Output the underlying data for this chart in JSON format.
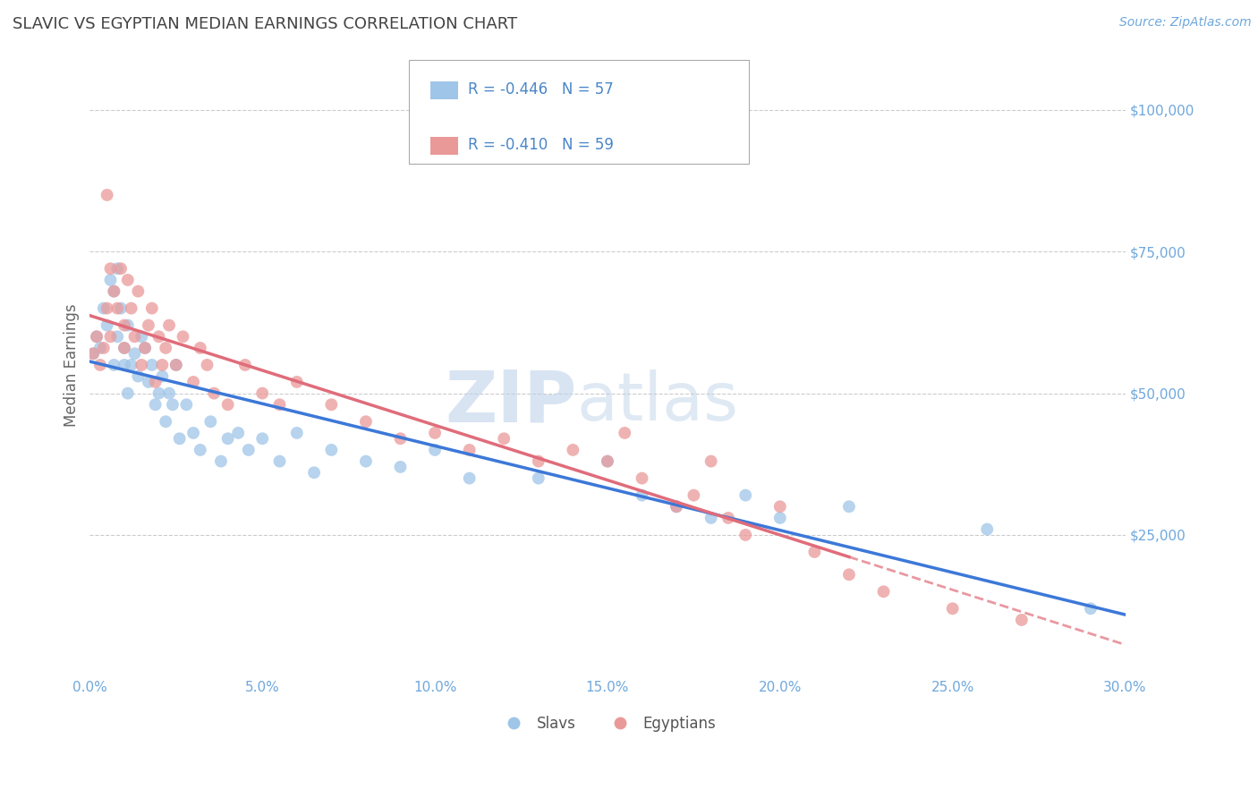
{
  "title": "SLAVIC VS EGYPTIAN MEDIAN EARNINGS CORRELATION CHART",
  "source_text": "Source: ZipAtlas.com",
  "ylabel": "Median Earnings",
  "xlim": [
    0.0,
    0.3
  ],
  "ylim": [
    0,
    110000
  ],
  "xticks": [
    0.0,
    0.05,
    0.1,
    0.15,
    0.2,
    0.25,
    0.3
  ],
  "xticklabels": [
    "0.0%",
    "5.0%",
    "10.0%",
    "15.0%",
    "20.0%",
    "25.0%",
    "30.0%"
  ],
  "yticks_right": [
    25000,
    50000,
    75000,
    100000
  ],
  "yticklabels_right": [
    "$25,000",
    "$50,000",
    "$75,000",
    "$100,000"
  ],
  "blue_color": "#9fc5e8",
  "pink_color": "#ea9999",
  "line_blue_color": "#3c78d8",
  "line_pink_color": "#e06c7a",
  "legend_text_color": "#4a86c8",
  "legend_r_blue": "R = -0.446",
  "legend_n_blue": "N = 57",
  "legend_r_pink": "R = -0.410",
  "legend_n_pink": "N = 59",
  "legend_label_blue": "Slavs",
  "legend_label_pink": "Egyptians",
  "title_color": "#434343",
  "axis_color": "#6fa8dc",
  "grid_color": "#cccccc",
  "slavs_x": [
    0.001,
    0.002,
    0.003,
    0.004,
    0.005,
    0.006,
    0.007,
    0.007,
    0.008,
    0.008,
    0.009,
    0.01,
    0.01,
    0.011,
    0.011,
    0.012,
    0.013,
    0.014,
    0.015,
    0.016,
    0.017,
    0.018,
    0.019,
    0.02,
    0.021,
    0.022,
    0.023,
    0.024,
    0.025,
    0.026,
    0.028,
    0.03,
    0.032,
    0.035,
    0.038,
    0.04,
    0.043,
    0.046,
    0.05,
    0.055,
    0.06,
    0.065,
    0.07,
    0.08,
    0.09,
    0.1,
    0.11,
    0.13,
    0.15,
    0.16,
    0.17,
    0.18,
    0.19,
    0.2,
    0.22,
    0.26,
    0.29
  ],
  "slavs_y": [
    57000,
    60000,
    58000,
    65000,
    62000,
    70000,
    68000,
    55000,
    72000,
    60000,
    65000,
    55000,
    58000,
    62000,
    50000,
    55000,
    57000,
    53000,
    60000,
    58000,
    52000,
    55000,
    48000,
    50000,
    53000,
    45000,
    50000,
    48000,
    55000,
    42000,
    48000,
    43000,
    40000,
    45000,
    38000,
    42000,
    43000,
    40000,
    42000,
    38000,
    43000,
    36000,
    40000,
    38000,
    37000,
    40000,
    35000,
    35000,
    38000,
    32000,
    30000,
    28000,
    32000,
    28000,
    30000,
    26000,
    12000
  ],
  "egyptians_x": [
    0.001,
    0.002,
    0.003,
    0.004,
    0.005,
    0.005,
    0.006,
    0.006,
    0.007,
    0.008,
    0.009,
    0.01,
    0.01,
    0.011,
    0.012,
    0.013,
    0.014,
    0.015,
    0.016,
    0.017,
    0.018,
    0.019,
    0.02,
    0.021,
    0.022,
    0.023,
    0.025,
    0.027,
    0.03,
    0.032,
    0.034,
    0.036,
    0.04,
    0.045,
    0.05,
    0.055,
    0.06,
    0.07,
    0.08,
    0.09,
    0.1,
    0.11,
    0.12,
    0.13,
    0.14,
    0.15,
    0.155,
    0.16,
    0.17,
    0.175,
    0.18,
    0.185,
    0.19,
    0.2,
    0.21,
    0.22,
    0.23,
    0.25,
    0.27
  ],
  "egyptians_y": [
    57000,
    60000,
    55000,
    58000,
    85000,
    65000,
    72000,
    60000,
    68000,
    65000,
    72000,
    58000,
    62000,
    70000,
    65000,
    60000,
    68000,
    55000,
    58000,
    62000,
    65000,
    52000,
    60000,
    55000,
    58000,
    62000,
    55000,
    60000,
    52000,
    58000,
    55000,
    50000,
    48000,
    55000,
    50000,
    48000,
    52000,
    48000,
    45000,
    42000,
    43000,
    40000,
    42000,
    38000,
    40000,
    38000,
    43000,
    35000,
    30000,
    32000,
    38000,
    28000,
    25000,
    30000,
    22000,
    18000,
    15000,
    12000,
    10000
  ]
}
